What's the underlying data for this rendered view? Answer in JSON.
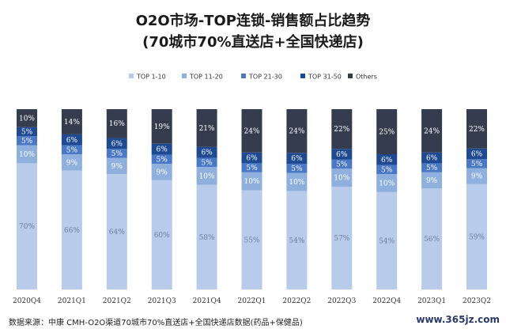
{
  "header": {
    "title": "O2O市场-TOP连锁-销售额占比趋势",
    "subtitle": "(70城市70%直送店+全国快递店)"
  },
  "footer": {
    "source": "数据来源：中康 CMH-O2O渠道70城市70%直送店+全国快递店数据(药品+保健品)",
    "site": "www.365jz.com"
  },
  "chart_data": {
    "type": "bar",
    "stacked": true,
    "percent_stacked": true,
    "title": "O2O市场-TOP连锁-销售额占比趋势",
    "subtitle": "(70城市70%直送店+全国快递店)",
    "categories": [
      "2020Q4",
      "2021Q1",
      "2021Q2",
      "2021Q3",
      "2021Q4",
      "2022Q1",
      "2022Q2",
      "2022Q3",
      "2022Q4",
      "2023Q1",
      "2023Q2"
    ],
    "legend_position": "top",
    "grid": false,
    "series": [
      {
        "name": "TOP 1-10",
        "color": "#b9cbea",
        "values": [
          70,
          66,
          64,
          60,
          58,
          55,
          54,
          57,
          54,
          56,
          59
        ],
        "labels": [
          "70%",
          "66%",
          "64%",
          "60%",
          "58%",
          "55%",
          "54%",
          "57%",
          "54%",
          "56%",
          "59%"
        ]
      },
      {
        "name": "TOP 11-20",
        "color": "#8fb0dd",
        "values": [
          10,
          9,
          9,
          9,
          10,
          10,
          10,
          10,
          10,
          9,
          9
        ],
        "labels": [
          "10%",
          "9%",
          "9%",
          "9%",
          "10%",
          "10%",
          "10%",
          "10%",
          "10%",
          "9%",
          "9%"
        ]
      },
      {
        "name": "TOP 21-30",
        "color": "#4a78c4",
        "values": [
          5,
          5,
          5,
          5,
          5,
          5,
          5,
          5,
          5,
          5,
          5
        ],
        "labels": [
          "5%",
          "5%",
          "5%",
          "5%",
          "5%",
          "5%",
          "5%",
          "5%",
          "5%",
          "5%",
          "5%"
        ]
      },
      {
        "name": "TOP 31-50",
        "color": "#1f4a92",
        "values": [
          5,
          6,
          6,
          6,
          6,
          6,
          6,
          6,
          6,
          6,
          6
        ],
        "labels": [
          "5%",
          "6%",
          "6%",
          "6%",
          "6%",
          "6%",
          "6%",
          "6%",
          "6%",
          "6%",
          "6%"
        ]
      },
      {
        "name": "Others",
        "color": "#343c4e",
        "values": [
          10,
          14,
          16,
          19,
          21,
          24,
          24,
          22,
          25,
          24,
          22
        ],
        "labels": [
          "10%",
          "14%",
          "16%",
          "19%",
          "21%",
          "24%",
          "24%",
          "22%",
          "25%",
          "24%",
          "22%"
        ]
      }
    ]
  }
}
